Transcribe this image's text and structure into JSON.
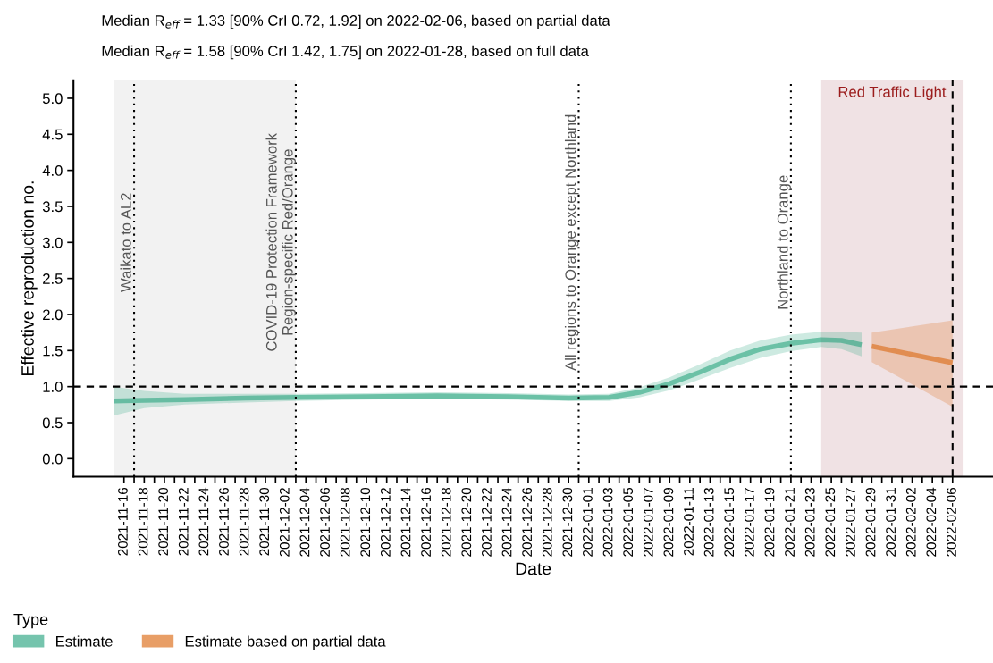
{
  "chart_data": {
    "type": "line",
    "title": "Median R$_{eff}$ = 1.33 [90% CrI 0.72, 1.92] on 2022-02-06, based on partial data",
    "subtitle": "Median R$_{eff}$ = 1.58 [90% CrI 1.42, 1.75] on 2022-01-28, based on full data",
    "xlabel": "Date",
    "ylabel": "Effective reproduction no.",
    "legend_title": "Type",
    "legend": "bottom",
    "grid": false,
    "series": [
      {
        "name": "Estimate",
        "color": "#1b9e77",
        "x": [
          "2021-11-15",
          "2021-11-18",
          "2021-11-22",
          "2021-11-28",
          "2021-12-03",
          "2021-12-10",
          "2021-12-17",
          "2021-12-24",
          "2021-12-30",
          "2022-01-03",
          "2022-01-06",
          "2022-01-09",
          "2022-01-12",
          "2022-01-15",
          "2022-01-18",
          "2022-01-21",
          "2022-01-24",
          "2022-01-26",
          "2022-01-28"
        ],
        "values": [
          0.8,
          0.81,
          0.82,
          0.84,
          0.85,
          0.86,
          0.87,
          0.86,
          0.84,
          0.85,
          0.92,
          1.04,
          1.2,
          1.38,
          1.52,
          1.6,
          1.65,
          1.64,
          1.58
        ],
        "lower": [
          0.6,
          0.7,
          0.75,
          0.78,
          0.8,
          0.82,
          0.83,
          0.82,
          0.8,
          0.8,
          0.85,
          0.95,
          1.1,
          1.26,
          1.4,
          1.49,
          1.55,
          1.52,
          1.42
        ],
        "upper": [
          1.0,
          0.94,
          0.9,
          0.9,
          0.9,
          0.91,
          0.92,
          0.91,
          0.89,
          0.9,
          0.99,
          1.13,
          1.31,
          1.5,
          1.64,
          1.72,
          1.76,
          1.76,
          1.75
        ]
      },
      {
        "name": "Estimate based on partial data",
        "color": "#d95f02",
        "x": [
          "2022-01-29",
          "2022-02-06"
        ],
        "values": [
          1.56,
          1.33
        ],
        "lower": [
          1.34,
          0.72
        ],
        "upper": [
          1.75,
          1.92
        ]
      }
    ],
    "xlim": [
      "2021-11-11",
      "2022-02-10"
    ],
    "ylim": [
      -0.25,
      5.25
    ],
    "yticks": [
      {
        "value": 0,
        "label": "0.0"
      },
      {
        "value": 0.5,
        "label": "0.5"
      },
      {
        "value": 1,
        "label": "1.0"
      },
      {
        "value": 1.5,
        "label": "1.5"
      },
      {
        "value": 2,
        "label": "2.0"
      },
      {
        "value": 2.5,
        "label": "2.5"
      },
      {
        "value": 3,
        "label": "3.0"
      },
      {
        "value": 3.5,
        "label": "3.5"
      },
      {
        "value": 4,
        "label": "4.0"
      },
      {
        "value": 4.5,
        "label": "4.5"
      },
      {
        "value": 5,
        "label": "5.0"
      }
    ],
    "xticks": [
      "2021-11-16",
      {
        "value": "2021-11-17",
        "label": null
      },
      "2021-11-18",
      {
        "value": "2021-11-19",
        "label": null
      },
      "2021-11-20",
      {
        "value": "2021-11-21",
        "label": null
      },
      "2021-11-22",
      {
        "value": "2021-11-23",
        "label": null
      },
      "2021-11-24",
      {
        "value": "2021-11-25",
        "label": null
      },
      "2021-11-26",
      {
        "value": "2021-11-27",
        "label": null
      },
      "2021-11-28",
      {
        "value": "2021-11-29",
        "label": null
      },
      "2021-11-30",
      {
        "value": "2021-12-01",
        "label": null
      },
      "2021-12-02",
      {
        "value": "2021-12-03",
        "label": null
      },
      "2021-12-04",
      {
        "value": "2021-12-05",
        "label": null
      },
      "2021-12-06",
      {
        "value": "2021-12-07",
        "label": null
      },
      "2021-12-08",
      {
        "value": "2021-12-09",
        "label": null
      },
      "2021-12-10",
      {
        "value": "2021-12-11",
        "label": null
      },
      "2021-12-12",
      {
        "value": "2021-12-13",
        "label": null
      },
      "2021-12-14",
      {
        "value": "2021-12-15",
        "label": null
      },
      "2021-12-16",
      {
        "value": "2021-12-17",
        "label": null
      },
      "2021-12-18",
      {
        "value": "2021-12-19",
        "label": null
      },
      "2021-12-20",
      {
        "value": "2021-12-21",
        "label": null
      },
      "2021-12-22",
      {
        "value": "2021-12-23",
        "label": null
      },
      "2021-12-24",
      {
        "value": "2021-12-25",
        "label": null
      },
      "2021-12-26",
      {
        "value": "2021-12-27",
        "label": null
      },
      "2021-12-28",
      {
        "value": "2021-12-29",
        "label": null
      },
      "2021-12-30",
      {
        "value": "2021-12-31",
        "label": null
      },
      "2022-01-01",
      {
        "value": "2022-01-02",
        "label": null
      },
      "2022-01-03",
      {
        "value": "2022-01-04",
        "label": null
      },
      "2022-01-05",
      {
        "value": "2022-01-06",
        "label": null
      },
      "2022-01-07",
      {
        "value": "2022-01-08",
        "label": null
      },
      "2022-01-09",
      {
        "value": "2022-01-10",
        "label": null
      },
      "2022-01-11",
      {
        "value": "2022-01-12",
        "label": null
      },
      "2022-01-13",
      {
        "value": "2022-01-14",
        "label": null
      },
      "2022-01-15",
      {
        "value": "2022-01-16",
        "label": null
      },
      "2022-01-17",
      {
        "value": "2022-01-18",
        "label": null
      },
      "2022-01-19",
      {
        "value": "2022-01-20",
        "label": null
      },
      "2022-01-21",
      {
        "value": "2022-01-22",
        "label": null
      },
      "2022-01-23",
      {
        "value": "2022-01-24",
        "label": null
      },
      "2022-01-25",
      {
        "value": "2022-01-26",
        "label": null
      },
      "2022-01-27",
      {
        "value": "2022-01-28",
        "label": null
      },
      "2022-01-29",
      {
        "value": "2022-01-30",
        "label": null
      },
      "2022-01-31",
      {
        "value": "2022-02-01",
        "label": null
      },
      "2022-02-02",
      {
        "value": "2022-02-03",
        "label": null
      },
      "2022-02-04",
      {
        "value": "2022-02-05",
        "label": null
      },
      "2022-02-06"
    ],
    "bands": [
      {
        "axis": "x",
        "from": "2021-11-15",
        "to": "2021-12-03",
        "color": "#f2f2f2"
      },
      {
        "axis": "x",
        "from": "2022-01-24",
        "to": "2022-02-07",
        "label": "Red Traffic Light",
        "color": "#f0e2e4"
      }
    ],
    "ref_lines": [
      {
        "axis": "y",
        "value": 1,
        "line_style": "dashed"
      },
      {
        "axis": "x",
        "value": "2021-11-17",
        "label": "Waikato to AL2",
        "line_style": "dotted"
      },
      {
        "axis": "x",
        "value": "2021-12-03",
        "label": "COVID-19 Protection Framework\nRegion-specific Red/Orange",
        "line_style": "dotted"
      },
      {
        "axis": "x",
        "value": "2021-12-31",
        "label": "All regions to Orange except Northland",
        "line_style": "dotted"
      },
      {
        "axis": "x",
        "value": "2022-01-21",
        "label": "Northland to Orange",
        "line_style": "dotted"
      },
      {
        "axis": "x",
        "value": "2022-02-06",
        "line_style": "dashed"
      }
    ]
  }
}
